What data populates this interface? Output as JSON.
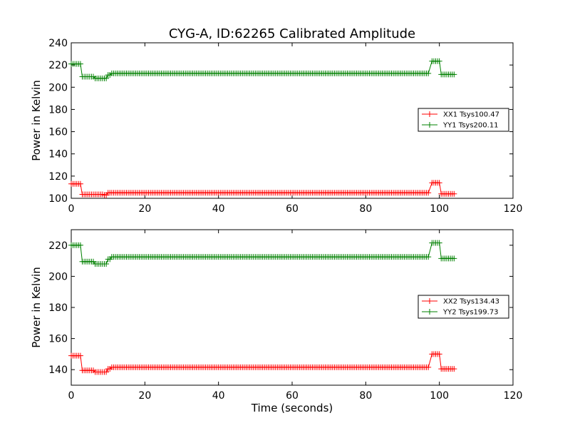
{
  "figure_title": "CYG-A, ID:62265 Calibrated Amplitude",
  "chart_data": [
    {
      "type": "line",
      "title": "CYG-A, ID:62265 Calibrated Amplitude",
      "xlabel": "",
      "ylabel": "Power in Kelvin",
      "xlim": [
        0,
        120
      ],
      "ylim": [
        100,
        240
      ],
      "xticks": [
        0,
        20,
        40,
        60,
        80,
        100,
        120
      ],
      "yticks": [
        100,
        120,
        140,
        160,
        180,
        200,
        220,
        240
      ],
      "grid": false,
      "legend": "right",
      "marker": "+",
      "series": [
        {
          "name": "XX1 Tsys100.47",
          "color": "#ff0000",
          "segments": [
            {
              "x_start": 0,
              "x_end": 2.5,
              "y": 113
            },
            {
              "x_start": 3,
              "x_end": 8.5,
              "y": 103.5
            },
            {
              "x_start": 9,
              "x_end": 9.5,
              "y": 103
            },
            {
              "x_start": 10,
              "x_end": 97,
              "y": 105
            },
            {
              "x_start": 98,
              "x_end": 100,
              "y": 114
            },
            {
              "x_start": 100.5,
              "x_end": 104,
              "y": 104
            }
          ]
        },
        {
          "name": "YY1 Tsys200.11",
          "color": "#008000",
          "segments": [
            {
              "x_start": 0,
              "x_end": 2.5,
              "y": 221
            },
            {
              "x_start": 3,
              "x_end": 6,
              "y": 209.5
            },
            {
              "x_start": 6.5,
              "x_end": 9.5,
              "y": 208
            },
            {
              "x_start": 10,
              "x_end": 10.5,
              "y": 211
            },
            {
              "x_start": 11,
              "x_end": 97,
              "y": 212.5
            },
            {
              "x_start": 98,
              "x_end": 100,
              "y": 223.5
            },
            {
              "x_start": 100.5,
              "x_end": 104,
              "y": 211.5
            }
          ]
        }
      ]
    },
    {
      "type": "line",
      "title": "",
      "xlabel": "Time (seconds)",
      "ylabel": "Power in Kelvin",
      "xlim": [
        0,
        120
      ],
      "ylim": [
        130,
        230
      ],
      "xticks": [
        0,
        20,
        40,
        60,
        80,
        100,
        120
      ],
      "yticks": [
        140,
        160,
        180,
        200,
        220
      ],
      "grid": false,
      "legend": "right",
      "marker": "+",
      "series": [
        {
          "name": "XX2 Tsys134.43",
          "color": "#ff0000",
          "segments": [
            {
              "x_start": 0,
              "x_end": 2.5,
              "y": 149
            },
            {
              "x_start": 3,
              "x_end": 6,
              "y": 139.5
            },
            {
              "x_start": 6.5,
              "x_end": 9.5,
              "y": 138.5
            },
            {
              "x_start": 10,
              "x_end": 10.5,
              "y": 140.5
            },
            {
              "x_start": 11,
              "x_end": 97,
              "y": 141.5
            },
            {
              "x_start": 98,
              "x_end": 100,
              "y": 150
            },
            {
              "x_start": 100.5,
              "x_end": 104,
              "y": 140.5
            }
          ]
        },
        {
          "name": "YY2 Tsys199.73",
          "color": "#008000",
          "segments": [
            {
              "x_start": 0,
              "x_end": 2.5,
              "y": 220
            },
            {
              "x_start": 3,
              "x_end": 6,
              "y": 209.5
            },
            {
              "x_start": 6.5,
              "x_end": 9.5,
              "y": 208
            },
            {
              "x_start": 10,
              "x_end": 10.5,
              "y": 211
            },
            {
              "x_start": 11,
              "x_end": 97,
              "y": 212.5
            },
            {
              "x_start": 98,
              "x_end": 100,
              "y": 221.5
            },
            {
              "x_start": 100.5,
              "x_end": 104,
              "y": 211.5
            }
          ]
        }
      ]
    }
  ]
}
